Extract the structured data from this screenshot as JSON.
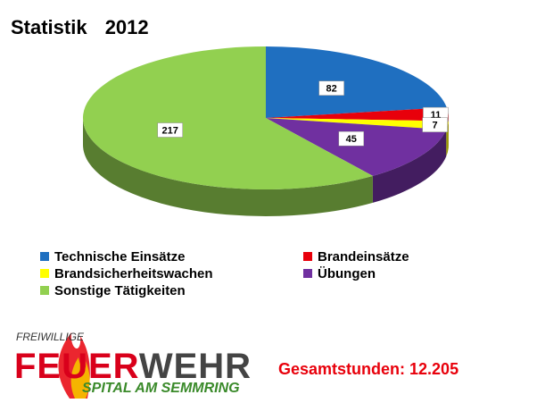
{
  "chart_data": {
    "type": "pie3d",
    "title": "Statistik 2012",
    "series": [
      {
        "name": "Technische Einsätze",
        "color": "#1f6fc0",
        "values": [
          82
        ]
      },
      {
        "name": "Brandeinsätze",
        "color": "#e8000b",
        "values": [
          11
        ]
      },
      {
        "name": "Brandsicherheitswachen",
        "color": "#ffff00",
        "values": [
          7
        ]
      },
      {
        "name": "Übungen",
        "color": "#7030a0",
        "values": [
          45
        ]
      },
      {
        "name": "Sonstige Tätigkeiten",
        "color": "#92d050",
        "values": [
          217
        ]
      }
    ],
    "legend": "bottom",
    "annotation": "Gesamtstunden: 12.205"
  },
  "logo": {
    "top": "FREIWILLIGE",
    "word1": "FEUER",
    "word2": "WEHR",
    "bottom": "SPITAL AM SEMMRING"
  }
}
